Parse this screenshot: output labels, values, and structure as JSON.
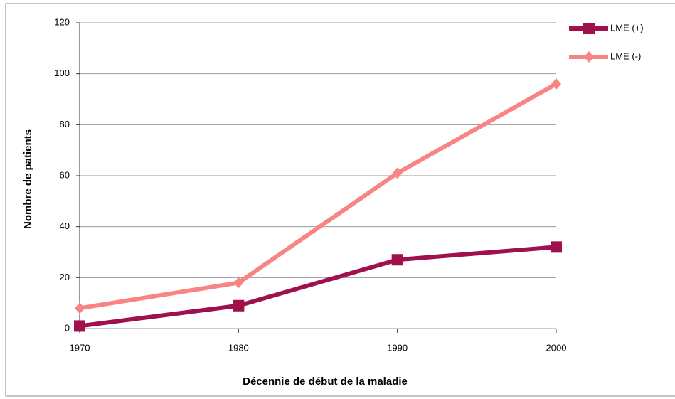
{
  "chart_data": {
    "type": "line",
    "x_label": "Décennie de début de la maladie",
    "y_label": "Nombre de patients",
    "x": [
      1970,
      1980,
      1990,
      2000
    ],
    "series": [
      {
        "name": "LME (+)",
        "color": "#a0104c",
        "marker": "square",
        "values": [
          1,
          9,
          27,
          32
        ]
      },
      {
        "name": "LME (-)",
        "color": "#f88484",
        "marker": "diamond",
        "values": [
          8,
          18,
          61,
          96
        ]
      }
    ],
    "xlim": [
      1970,
      2000
    ],
    "xticks": [
      1970,
      1980,
      1990,
      2000
    ],
    "ylim": [
      0,
      120
    ],
    "yticks": [
      0,
      20,
      40,
      60,
      80,
      100,
      120
    ],
    "grid": true,
    "legend": "upper right"
  }
}
